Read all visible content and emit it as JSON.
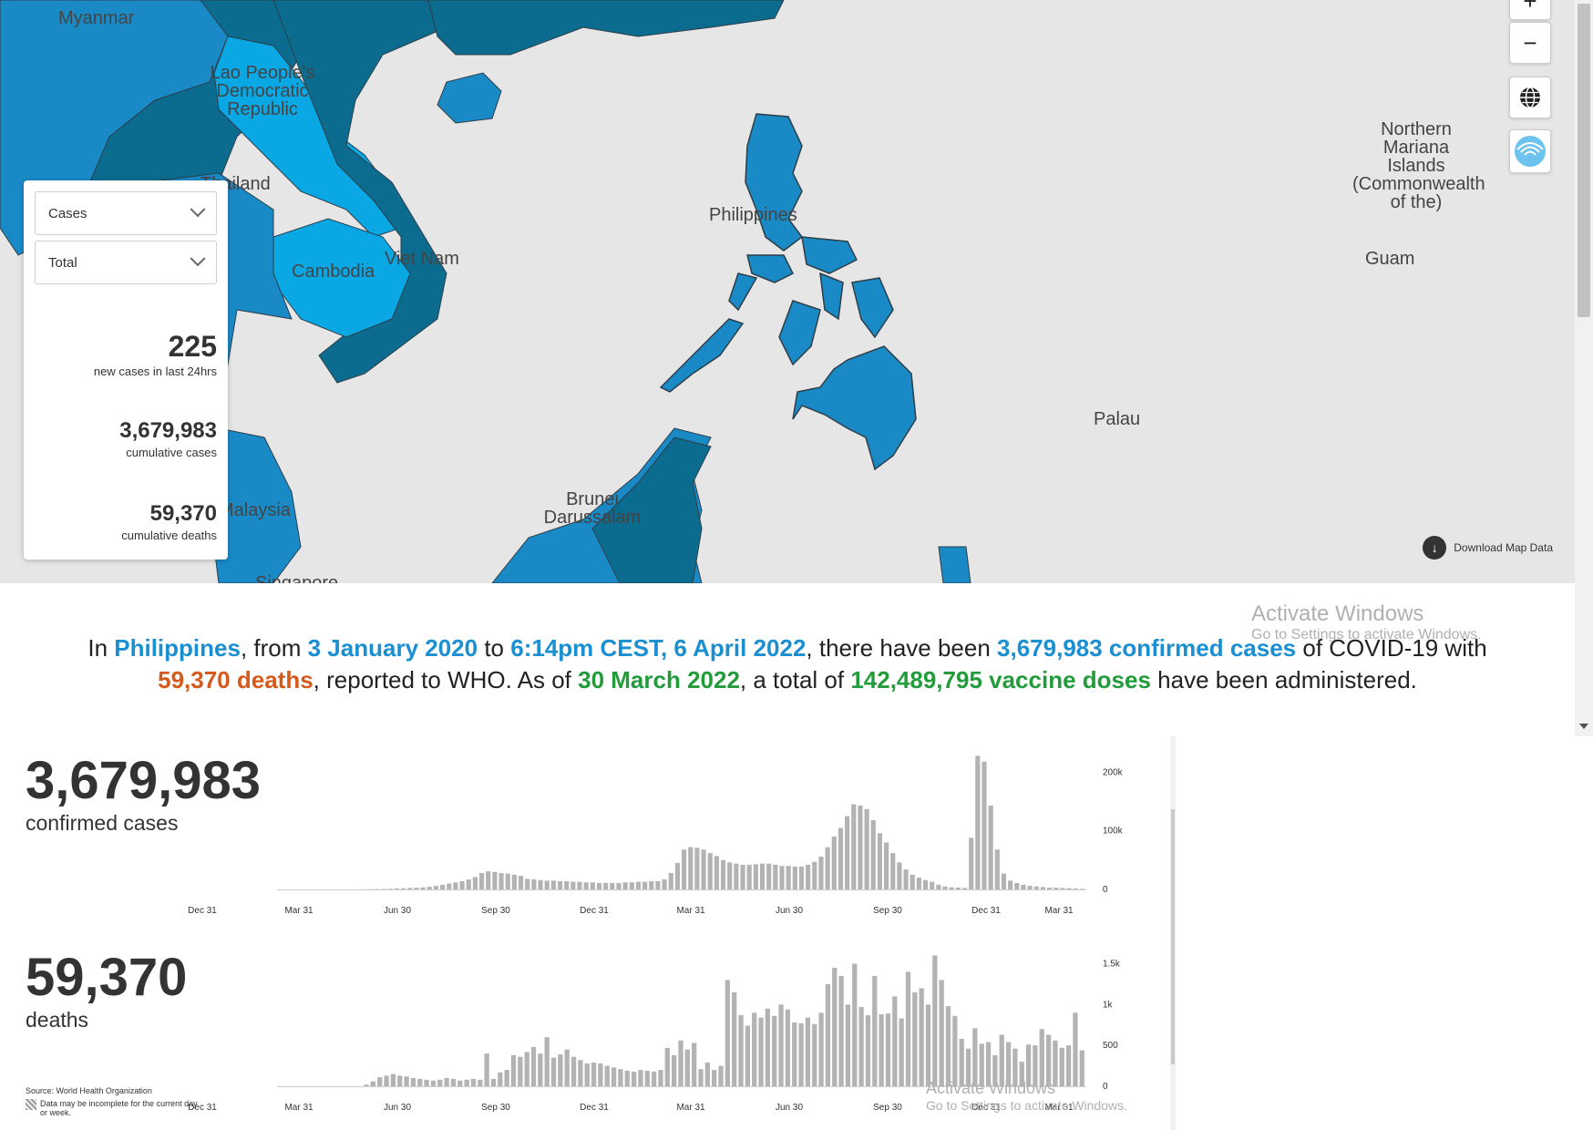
{
  "map": {
    "labels": {
      "myanmar": "Myanmar",
      "lao": "Lao People's Democratic Republic",
      "thailand": "Thailand",
      "cambodia": "Cambodia",
      "vietnam": "Viet Nam",
      "philippines": "Philippines",
      "malaysia": "Malaysia",
      "brunei": "Brunei Darussalam",
      "singapore": "Singapore",
      "palau": "Palau",
      "guam": "Guam",
      "northern_mariana": "Northern Mariana Islands (Commonwealth of the)"
    },
    "zoom_in": "+",
    "zoom_out": "−",
    "download_label": "Download Map Data",
    "colors": {
      "ocean": "#e6e6e6",
      "dark": "#0b6c8f",
      "medium": "#1a8ac7",
      "light": "#0aa7e5",
      "border": "#2d3e48"
    }
  },
  "panel": {
    "metric_select": "Cases",
    "period_select": "Total",
    "new_cases": "225",
    "new_cases_label": "new cases in last 24hrs",
    "cumulative_cases": "3,679,983",
    "cumulative_cases_label": "cumulative cases",
    "cumulative_deaths": "59,370",
    "cumulative_deaths_label": "cumulative deaths"
  },
  "summary": {
    "t1": "In ",
    "country": "Philippines",
    "t2": ", from ",
    "start_date": "3 January 2020",
    "t3": " to ",
    "end_date": "6:14pm CEST, 6 April 2022",
    "t4": ", there have been ",
    "confirmed": "3,679,983 confirmed cases",
    "t5": " of COVID-19 with ",
    "deaths": "59,370 deaths",
    "t6": ", reported to WHO. As of ",
    "vaccine_date": "30 March 2022",
    "t7": ", a total of ",
    "vaccine_doses": "142,489,795 vaccine doses",
    "t8": " have been administered."
  },
  "watermark": {
    "title": "Activate Windows",
    "subtitle": "Go to Settings to activate Windows."
  },
  "cases": {
    "big_number": "3,679,983",
    "label": "confirmed cases"
  },
  "deaths": {
    "big_number": "59,370",
    "label": "deaths"
  },
  "footer": {
    "source": "Source:  World Health Organization",
    "note": "Data may be incomplete for the current day or week."
  },
  "chart_data": [
    {
      "type": "bar",
      "title": "",
      "x_ticks": [
        "Dec 31",
        "Mar 31",
        "Jun 30",
        "Sep 30",
        "Dec 31",
        "Mar 31",
        "Jun 30",
        "Sep 30",
        "Dec 31",
        "Mar 31"
      ],
      "y_ticks": [
        "0",
        "100k",
        "200k"
      ],
      "ylim": [
        0,
        230000
      ],
      "bar_color": "#b3b3b3",
      "values": [
        0,
        0,
        0,
        0,
        0,
        0,
        0,
        0,
        0,
        0,
        0,
        0,
        0,
        200,
        400,
        600,
        800,
        1000,
        1500,
        2000,
        2500,
        3000,
        3500,
        4500,
        6000,
        8000,
        10000,
        12000,
        14000,
        17000,
        21000,
        28000,
        31000,
        30000,
        28000,
        27000,
        25000,
        23000,
        18000,
        17000,
        16000,
        15000,
        15000,
        14000,
        14000,
        13000,
        13000,
        12000,
        12000,
        11000,
        11000,
        11000,
        11000,
        12000,
        12000,
        13000,
        13000,
        14000,
        14000,
        17000,
        28000,
        45000,
        68000,
        72000,
        71000,
        68000,
        62000,
        57000,
        50000,
        46000,
        44000,
        42000,
        42000,
        43000,
        44000,
        44000,
        42000,
        40000,
        40000,
        39000,
        39000,
        42000,
        47000,
        56000,
        72000,
        90000,
        105000,
        125000,
        145000,
        143000,
        137000,
        118000,
        96000,
        80000,
        62000,
        46000,
        34000,
        25000,
        20000,
        16000,
        13000,
        8000,
        5000,
        3500,
        3000,
        2500,
        88000,
        228000,
        218000,
        143000,
        68000,
        27000,
        15000,
        11000,
        8000,
        6000,
        5000,
        4000,
        3000,
        3000,
        2500,
        2000,
        1500,
        1000
      ]
    },
    {
      "type": "bar",
      "title": "",
      "x_ticks": [
        "Dec 31",
        "Mar 31",
        "Jun 30",
        "Sep 30",
        "Dec 31",
        "Mar 31",
        "Jun 30",
        "Sep 30",
        "Dec 31",
        "Mar 31"
      ],
      "y_ticks": [
        "0",
        "500",
        "1k",
        "1.5k"
      ],
      "ylim": [
        0,
        1650
      ],
      "bar_color": "#b3b3b3",
      "values": [
        0,
        0,
        0,
        0,
        0,
        0,
        0,
        0,
        0,
        0,
        0,
        0,
        0,
        20,
        60,
        110,
        130,
        150,
        130,
        120,
        100,
        90,
        80,
        70,
        80,
        100,
        90,
        70,
        80,
        90,
        80,
        400,
        90,
        170,
        200,
        380,
        360,
        420,
        480,
        400,
        600,
        350,
        390,
        450,
        360,
        320,
        280,
        290,
        280,
        250,
        230,
        210,
        190,
        180,
        200,
        190,
        180,
        200,
        470,
        380,
        560,
        450,
        530,
        210,
        290,
        200,
        250,
        1300,
        1150,
        870,
        740,
        900,
        840,
        950,
        860,
        1000,
        940,
        780,
        770,
        840,
        760,
        900,
        1250,
        1450,
        1350,
        1000,
        1500,
        970,
        870,
        1350,
        880,
        890,
        1100,
        830,
        1400,
        1150,
        1200,
        1000,
        1600,
        1300,
        980,
        860,
        580,
        460,
        710,
        520,
        540,
        380,
        630,
        540,
        460,
        300,
        510,
        500,
        700,
        630,
        560,
        470,
        500,
        900,
        440
      ]
    }
  ]
}
